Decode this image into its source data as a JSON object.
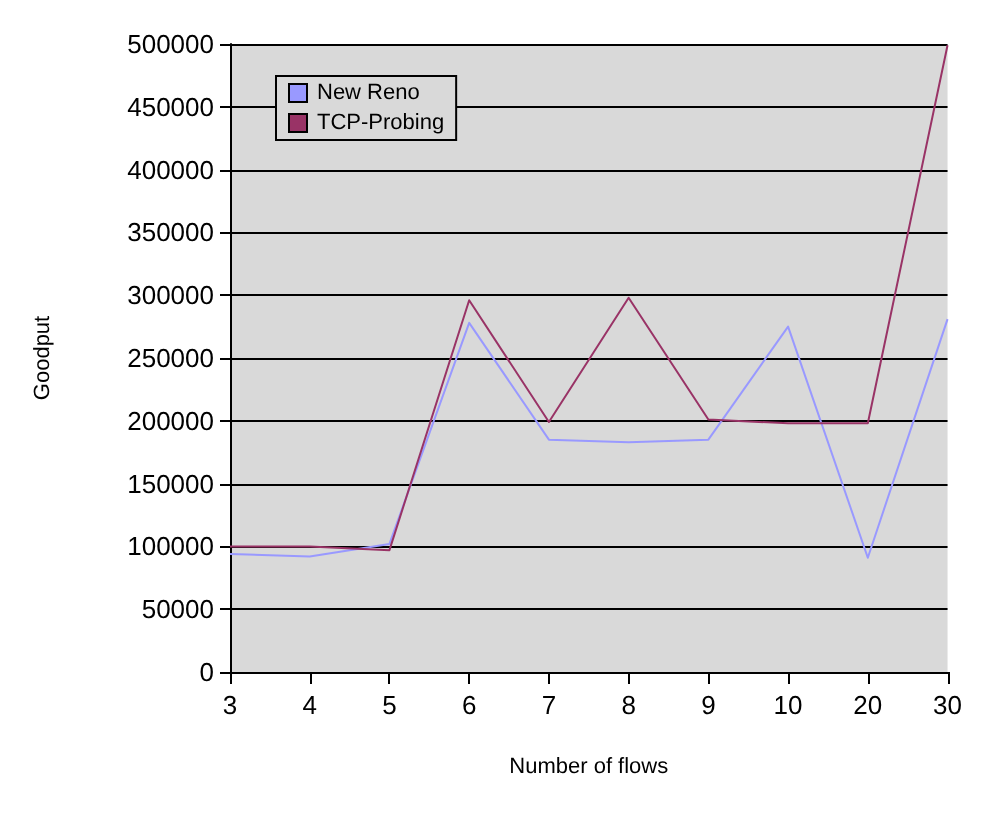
{
  "chart_data": {
    "type": "line",
    "xlabel": "Number of flows",
    "ylabel": "Goodput",
    "categories": [
      "3",
      "4",
      "5",
      "6",
      "7",
      "8",
      "9",
      "10",
      "20",
      "30"
    ],
    "series": [
      {
        "name": "New Reno",
        "color": "#9999ff",
        "values": [
          94000,
          92000,
          102000,
          278000,
          185000,
          183000,
          185000,
          275000,
          91000,
          281000
        ]
      },
      {
        "name": "TCP-Probing",
        "color": "#993366",
        "values": [
          100000,
          100000,
          97000,
          296000,
          199000,
          298000,
          201000,
          198000,
          198000,
          499000
        ]
      }
    ],
    "ylim": [
      0,
      500000
    ],
    "yticks": [
      0,
      50000,
      100000,
      150000,
      200000,
      250000,
      300000,
      350000,
      400000,
      450000,
      500000
    ],
    "grid": "y",
    "legend": "top left",
    "marker": "none",
    "line_style": "solid"
  }
}
